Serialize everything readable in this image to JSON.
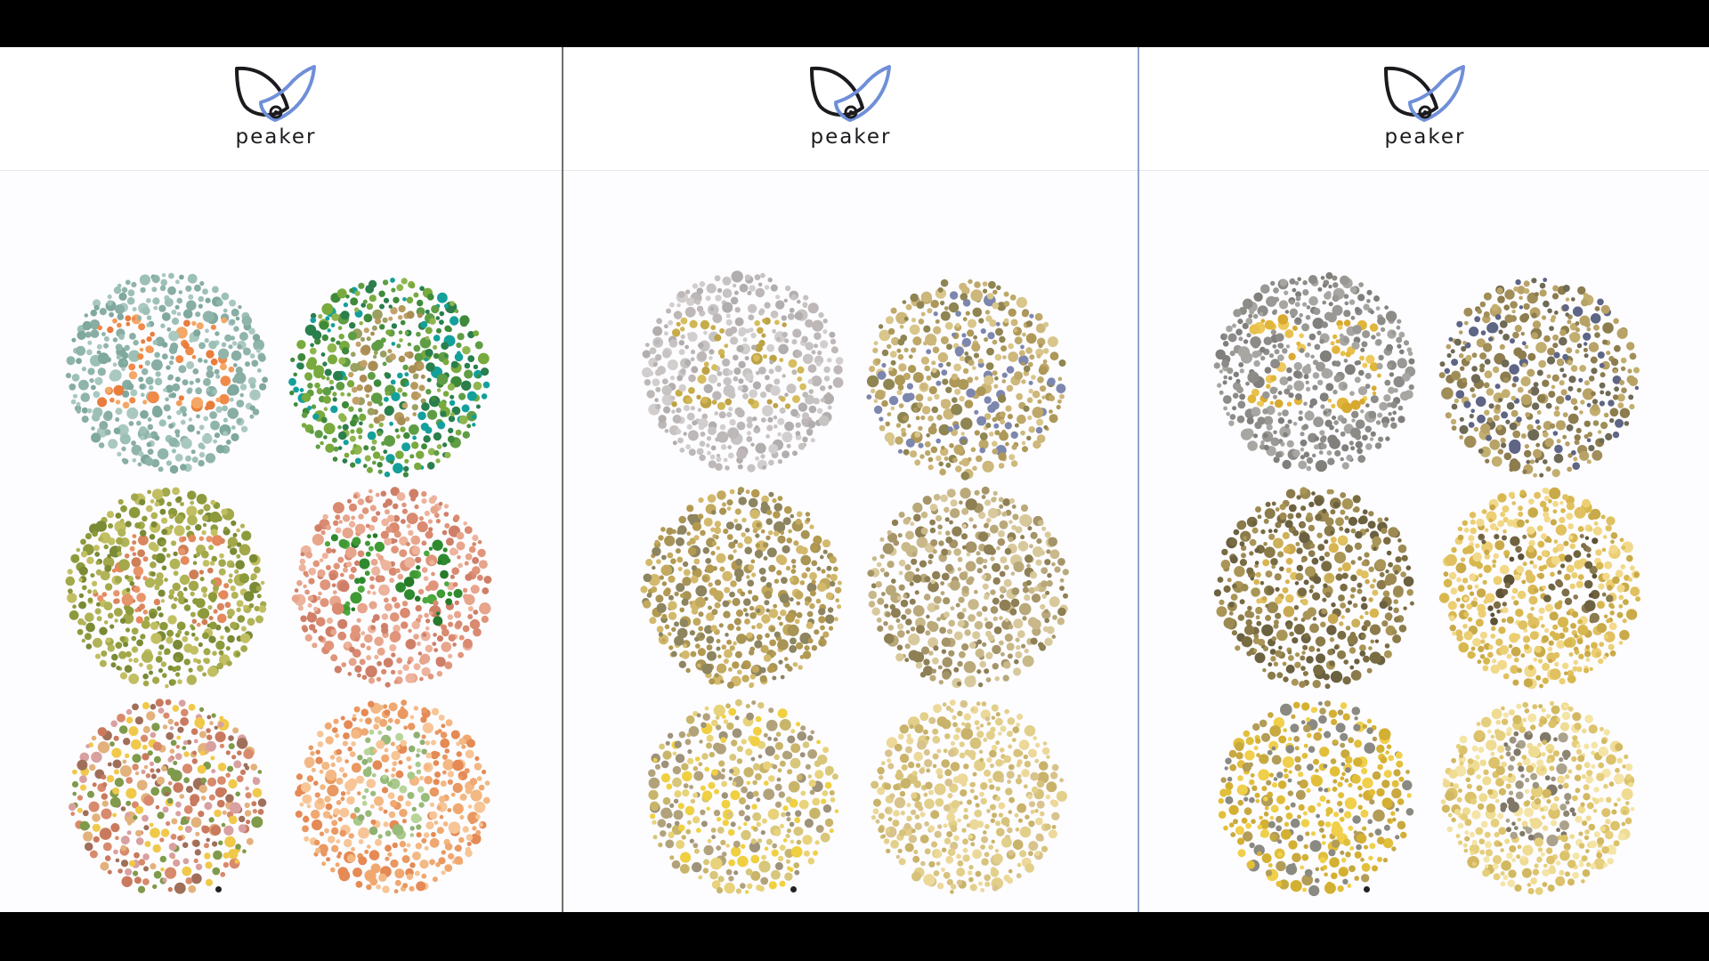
{
  "app": {
    "brand_name": "peaker",
    "logo_icon": "eye-leaf-logo",
    "colors": {
      "outer_background": "#000000",
      "panel_background": "#fdfcfe",
      "logo_dark": "#1b1b1f",
      "logo_accent": "#6f8fd8"
    }
  },
  "panels": [
    {
      "name": "normal-vision",
      "brand": "peaker",
      "plates": [
        {
          "number_shown": "25",
          "palette": {
            "bg": [
              "#8fb5ab",
              "#9cc0b6",
              "#7fa89e",
              "#a9c8c0",
              "#88ada4"
            ],
            "fg": [
              "#ef8a48",
              "#f29a58",
              "#e87d3d",
              "#f4a766"
            ]
          }
        },
        {
          "number_shown": "6",
          "palette": {
            "bg": [
              "#5f9d45",
              "#78aa3d",
              "#3e8a3a",
              "#8fb54e",
              "#14a09a",
              "#2a7f4c"
            ],
            "fg": [
              "#b59a5c",
              "#c2a26a",
              "#a88e55",
              "#99a060"
            ]
          }
        },
        {
          "number_shown": "45",
          "palette": {
            "bg": [
              "#8d9a3b",
              "#a3a84a",
              "#b0b456",
              "#7a8a35",
              "#c2bf63"
            ],
            "fg": [
              "#e3895b",
              "#d9865e",
              "#e8946a",
              "#cf7f55"
            ]
          }
        },
        {
          "number_shown": "74",
          "palette": {
            "bg": [
              "#e0957a",
              "#d98a70",
              "#e7a58c",
              "#cf7f68",
              "#edb39c"
            ],
            "fg": [
              "#2f8a2f",
              "#3f9a34",
              "#267a2a",
              "#4ca83c"
            ]
          }
        },
        {
          "number_shown": "",
          "palette": {
            "bg": [
              "#d88a6d",
              "#c97a5e",
              "#e3b17c",
              "#f0c94a",
              "#7f9a4a",
              "#d8a0a0",
              "#a06f5a"
            ],
            "fg": [
              "#d88a6d",
              "#c97a5e",
              "#e3b17c",
              "#f0c94a"
            ]
          }
        },
        {
          "number_shown": "8",
          "palette": {
            "bg": [
              "#f0a870",
              "#e89860",
              "#f3b883",
              "#e58a55",
              "#f7c596"
            ],
            "fg": [
              "#a9c98a",
              "#98bb7a",
              "#b8d49a",
              "#8fb072"
            ]
          }
        }
      ]
    },
    {
      "name": "simulated-vision-1",
      "brand": "peaker",
      "plates": [
        {
          "number_shown": "25",
          "palette": {
            "bg": [
              "#c7c3c2",
              "#bdb8b7",
              "#d2cecd",
              "#b3aeae"
            ],
            "fg": [
              "#c7ad4a",
              "#d0b655",
              "#bda245",
              "#d6bd5e"
            ]
          }
        },
        {
          "number_shown": "",
          "palette": {
            "bg": [
              "#bda86a",
              "#ad9858",
              "#cdb77a",
              "#8f8552",
              "#7d86ad",
              "#d8c68a"
            ],
            "fg": [
              "#bda86a",
              "#ad9858",
              "#cdb77a"
            ]
          }
        },
        {
          "number_shown": "",
          "palette": {
            "bg": [
              "#c2a95e",
              "#b39a50",
              "#d2b96c",
              "#a89455",
              "#8d8460"
            ],
            "fg": [
              "#c2a95e",
              "#b39a50",
              "#d2b96c"
            ]
          }
        },
        {
          "number_shown": "",
          "palette": {
            "bg": [
              "#c9b98a",
              "#b9a97a",
              "#d8c99c",
              "#a59468",
              "#8e7f55"
            ],
            "fg": [
              "#9c8a5a",
              "#8f7e50",
              "#a89565"
            ]
          }
        },
        {
          "number_shown": "",
          "palette": {
            "bg": [
              "#d8c67a",
              "#c9b56a",
              "#e8d27a",
              "#f0d040",
              "#9e927a",
              "#b2a27c"
            ],
            "fg": [
              "#d8c67a",
              "#c9b56a",
              "#e8d27a"
            ]
          }
        },
        {
          "number_shown": "",
          "palette": {
            "bg": [
              "#e2cf8a",
              "#d6c27a",
              "#ecd99a",
              "#c9b36a",
              "#d8c38d"
            ],
            "fg": [
              "#c5b27e",
              "#bba977",
              "#d0bd88"
            ]
          }
        }
      ]
    },
    {
      "name": "simulated-vision-2",
      "brand": "peaker",
      "plates": [
        {
          "number_shown": "25",
          "palette": {
            "bg": [
              "#9a9894",
              "#8d8b88",
              "#a8a6a2",
              "#817f7c"
            ],
            "fg": [
              "#e0b63a",
              "#e8c04a",
              "#d7aa2f",
              "#efc85a"
            ]
          }
        },
        {
          "number_shown": "",
          "palette": {
            "bg": [
              "#8c7c4e",
              "#a08d58",
              "#b8a266",
              "#6f6a55",
              "#5e6585",
              "#c2ae6e"
            ],
            "fg": [
              "#8c7c4e",
              "#a08d58",
              "#b8a266"
            ]
          }
        },
        {
          "number_shown": "45",
          "palette": {
            "bg": [
              "#8b7b4a",
              "#9c8a52",
              "#7a6c42",
              "#a99556",
              "#6b6040"
            ],
            "fg": [
              "#d8b550",
              "#ccb05a",
              "#e0c060",
              "#c8a850"
            ]
          }
        },
        {
          "number_shown": "74",
          "palette": {
            "bg": [
              "#e0c060",
              "#d8b84e",
              "#eccf72",
              "#c9aa48",
              "#f2d98a"
            ],
            "fg": [
              "#6f6240",
              "#5e5235",
              "#7d6e48",
              "#8a7a50"
            ]
          }
        },
        {
          "number_shown": "",
          "palette": {
            "bg": [
              "#e2bf3a",
              "#d4b032",
              "#f0cf4a",
              "#8a8a82",
              "#b29c58",
              "#c8a940"
            ],
            "fg": [
              "#e2bf3a",
              "#d4b032",
              "#f0cf4a"
            ]
          }
        },
        {
          "number_shown": "8",
          "palette": {
            "bg": [
              "#e6cf7c",
              "#dcc26a",
              "#efdc92",
              "#d2b860",
              "#f4e4a6"
            ],
            "fg": [
              "#9c9480",
              "#8e8672",
              "#aaa28c",
              "#807866"
            ]
          }
        }
      ]
    }
  ]
}
